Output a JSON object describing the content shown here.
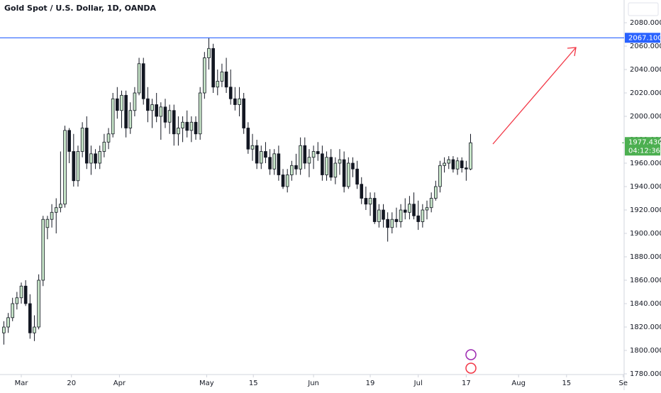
{
  "chart_data": {
    "type": "candlestick",
    "title": "Gold Spot / U.S. Dollar, 1D, OANDA",
    "x": [
      -4,
      -3,
      -2,
      -1,
      0,
      1,
      2,
      3,
      4,
      5,
      6,
      7,
      8,
      9,
      10,
      11,
      12,
      13,
      14,
      15,
      16,
      17,
      18,
      19,
      20,
      21,
      22,
      23,
      24,
      25,
      26,
      27,
      28,
      29,
      30,
      31,
      32,
      33,
      34,
      35,
      36,
      37,
      38,
      39,
      40,
      41,
      42,
      43,
      44,
      45,
      46,
      47,
      48,
      49,
      50,
      51,
      52,
      53,
      54,
      55,
      56,
      57,
      58,
      59,
      60,
      61,
      62,
      63,
      64,
      65,
      66,
      67,
      68,
      69,
      70,
      71,
      72,
      73,
      74,
      75,
      76,
      77,
      78,
      79,
      80,
      81,
      82,
      83,
      84,
      85,
      86,
      87,
      88,
      89,
      90,
      91,
      92,
      93,
      94,
      95,
      96,
      97,
      98,
      99,
      100,
      101,
      102,
      103
    ],
    "open": [
      1815,
      1820,
      1828,
      1840,
      1845,
      1855,
      1840,
      1815,
      1820,
      1860,
      1905,
      1912,
      1918,
      1922,
      1925,
      1988,
      1970,
      1945,
      1970,
      1990,
      1960,
      1968,
      1960,
      1970,
      1978,
      1985,
      2015,
      2005,
      2018,
      1990,
      2005,
      2020,
      2045,
      2015,
      2005,
      2010,
      2000,
      2008,
      1995,
      2005,
      1985,
      1990,
      1995,
      1988,
      1995,
      1985,
      2020,
      2050,
      2058,
      2025,
      2030,
      2038,
      2025,
      2015,
      2010,
      2015,
      1990,
      1972,
      1975,
      1960,
      1970,
      1965,
      1955,
      1968,
      1950,
      1940,
      1950,
      1958,
      1955,
      1975,
      1960,
      1965,
      1970,
      1968,
      1950,
      1965,
      1948,
      1960,
      1963,
      1940,
      1960,
      1955,
      1942,
      1930,
      1925,
      1930,
      1910,
      1920,
      1912,
      1905,
      1912,
      1910,
      1920,
      1918,
      1925,
      1915,
      1910,
      1920,
      1922,
      1930,
      1940,
      1958,
      1960,
      1963,
      1955,
      1962,
      1956,
      1955
    ],
    "high": [
      1825,
      1832,
      1845,
      1850,
      1858,
      1860,
      1848,
      1830,
      1865,
      1915,
      1915,
      1925,
      1930,
      1970,
      1992,
      1990,
      1985,
      1975,
      1995,
      2000,
      1975,
      1972,
      1975,
      1985,
      1990,
      2020,
      2025,
      2022,
      2022,
      2012,
      2025,
      2050,
      2050,
      2025,
      2015,
      2020,
      2012,
      2015,
      2010,
      2010,
      2000,
      2000,
      2005,
      2000,
      2000,
      2025,
      2055,
      2067,
      2062,
      2040,
      2045,
      2050,
      2040,
      2025,
      2025,
      2020,
      1995,
      1985,
      1980,
      1975,
      1978,
      1972,
      1972,
      1975,
      1955,
      1955,
      1962,
      1968,
      1982,
      1982,
      1972,
      1975,
      1978,
      1975,
      1970,
      1972,
      1965,
      1972,
      1970,
      1965,
      1965,
      1962,
      1948,
      1940,
      1935,
      1935,
      1925,
      1925,
      1918,
      1918,
      1922,
      1925,
      1930,
      1932,
      1935,
      1928,
      1925,
      1928,
      1935,
      1945,
      1962,
      1965,
      1966,
      1966,
      1965,
      1965,
      1962,
      1985
    ],
    "low": [
      1805,
      1815,
      1825,
      1835,
      1840,
      1838,
      1810,
      1808,
      1818,
      1855,
      1895,
      1905,
      1900,
      1918,
      1922,
      1960,
      1940,
      1940,
      1965,
      1955,
      1950,
      1955,
      1955,
      1965,
      1972,
      1982,
      1998,
      1990,
      1982,
      1985,
      2000,
      2018,
      2010,
      1995,
      1990,
      1995,
      1980,
      1990,
      1985,
      1975,
      1975,
      1978,
      1982,
      1978,
      1980,
      1980,
      2015,
      2040,
      2020,
      2018,
      2025,
      2020,
      2010,
      2005,
      2000,
      1985,
      1968,
      1962,
      1955,
      1955,
      1960,
      1950,
      1950,
      1945,
      1938,
      1935,
      1945,
      1950,
      1950,
      1955,
      1948,
      1955,
      1962,
      1945,
      1945,
      1945,
      1942,
      1950,
      1935,
      1938,
      1948,
      1938,
      1925,
      1920,
      1915,
      1908,
      1905,
      1905,
      1893,
      1900,
      1905,
      1905,
      1912,
      1912,
      1912,
      1903,
      1905,
      1912,
      1918,
      1928,
      1935,
      1952,
      1955,
      1952,
      1950,
      1952,
      1945,
      1954
    ],
    "close": [
      1820,
      1828,
      1840,
      1845,
      1855,
      1840,
      1815,
      1820,
      1860,
      1912,
      1912,
      1918,
      1922,
      1925,
      1988,
      1970,
      1945,
      1970,
      1990,
      1960,
      1968,
      1960,
      1970,
      1978,
      1985,
      2015,
      2005,
      2018,
      1990,
      2005,
      2020,
      2045,
      2015,
      2005,
      2010,
      2000,
      2008,
      1995,
      2005,
      1985,
      1990,
      1995,
      1988,
      1995,
      1985,
      2020,
      2050,
      2058,
      2025,
      2030,
      2038,
      2025,
      2015,
      2010,
      2015,
      1990,
      1972,
      1975,
      1960,
      1970,
      1965,
      1955,
      1968,
      1950,
      1940,
      1950,
      1958,
      1955,
      1975,
      1960,
      1965,
      1970,
      1968,
      1950,
      1965,
      1948,
      1960,
      1963,
      1940,
      1960,
      1955,
      1942,
      1930,
      1925,
      1930,
      1910,
      1920,
      1912,
      1905,
      1912,
      1910,
      1920,
      1918,
      1925,
      1915,
      1910,
      1920,
      1922,
      1930,
      1940,
      1958,
      1960,
      1963,
      1955,
      1962,
      1956,
      1955,
      1977.43
    ],
    "up_color": "#c8e6c9",
    "down_color": "#131722",
    "xlim": [
      -4.88,
      138.2
    ],
    "xticks": [
      {
        "value": 0,
        "label": "Mar"
      },
      {
        "value": 11.5,
        "label": "20"
      },
      {
        "value": 22.5,
        "label": "Apr"
      },
      {
        "value": 42.5,
        "label": "May"
      },
      {
        "value": 53.2,
        "label": "15"
      },
      {
        "value": 67,
        "label": "Jun"
      },
      {
        "value": 80,
        "label": "19"
      },
      {
        "value": 91,
        "label": "Jul"
      },
      {
        "value": 102,
        "label": "17"
      },
      {
        "value": 114,
        "label": "Aug"
      },
      {
        "value": 125,
        "label": "15"
      },
      {
        "value": 138,
        "label": "Se"
      }
    ],
    "ylim": [
      1779.4,
      2099.4
    ],
    "yticks": [
      {
        "value": 1780,
        "label": "1780.000"
      },
      {
        "value": 1800,
        "label": "1800.000"
      },
      {
        "value": 1820,
        "label": "1820.000"
      },
      {
        "value": 1840,
        "label": "1840.000"
      },
      {
        "value": 1860,
        "label": "1860.000"
      },
      {
        "value": 1880,
        "label": "1880.000"
      },
      {
        "value": 1900,
        "label": "1900.000"
      },
      {
        "value": 1920,
        "label": "1920.000"
      },
      {
        "value": 1940,
        "label": "1940.000"
      },
      {
        "value": 1960,
        "label": "1960.000"
      },
      {
        "value": 1980,
        "label": "1980.000"
      },
      {
        "value": 2000,
        "label": "2000.000"
      },
      {
        "value": 2020,
        "label": "2020.000"
      },
      {
        "value": 2040,
        "label": "2040.000"
      },
      {
        "value": 2060,
        "label": "2060.000"
      },
      {
        "value": 2080,
        "label": "2080.000"
      }
    ],
    "hline": {
      "value": 2067.1,
      "label": "2067.100",
      "color": "#2962ff"
    },
    "last_price": {
      "value": 1977.43,
      "label": "1977.430",
      "countdown": "04:12:36",
      "color": "#4caf50"
    }
  }
}
